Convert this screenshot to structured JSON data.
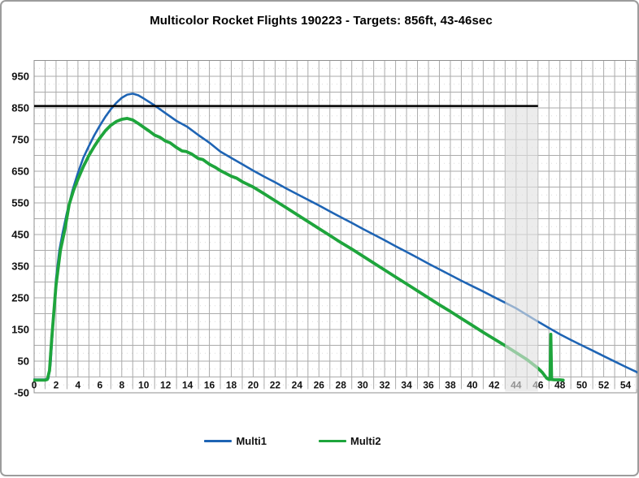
{
  "chart_data": {
    "type": "line",
    "title": "Multicolor Rocket Flights 190223 - Targets: 856ft, 43-46sec",
    "xlabel": "",
    "ylabel": "",
    "x_unit": "seconds",
    "y_unit": "feet",
    "xlim": [
      0,
      55
    ],
    "ylim": [
      -50,
      1000
    ],
    "x_tick_labels": [
      0,
      2,
      4,
      6,
      8,
      10,
      12,
      14,
      16,
      18,
      20,
      22,
      24,
      26,
      28,
      30,
      32,
      34,
      36,
      38,
      40,
      42,
      44,
      46,
      48,
      50,
      52,
      54
    ],
    "y_tick_labels": [
      -50,
      50,
      150,
      250,
      350,
      450,
      550,
      650,
      750,
      850,
      950
    ],
    "x_gridline_interval": 1,
    "y_gridline_interval": 50,
    "grid": true,
    "legend_position": "bottom",
    "target_altitude_ft": 856,
    "target_time_band_sec": [
      43,
      46
    ],
    "target_line": {
      "value": 856,
      "x_start": 0,
      "x_end": 46,
      "color": "#000000"
    },
    "band": {
      "x_start": 43,
      "x_end": 46,
      "color": "rgba(224,224,224,0.62)"
    },
    "grid_color": "#ababab",
    "border_color": "#8f8f8f",
    "series": [
      {
        "name": "Multi1",
        "color": "#1e64b4",
        "width": 2.6,
        "points": [
          [
            0,
            -8
          ],
          [
            0.5,
            -8
          ],
          [
            1,
            -8
          ],
          [
            1.3,
            -5
          ],
          [
            1.5,
            40
          ],
          [
            1.7,
            150
          ],
          [
            2,
            310
          ],
          [
            2.3,
            400
          ],
          [
            2.6,
            455
          ],
          [
            3,
            520
          ],
          [
            3.5,
            590
          ],
          [
            4,
            645
          ],
          [
            4.5,
            693
          ],
          [
            5,
            730
          ],
          [
            5.5,
            764
          ],
          [
            6,
            794
          ],
          [
            6.5,
            822
          ],
          [
            7,
            846
          ],
          [
            7.5,
            866
          ],
          [
            8,
            882
          ],
          [
            8.5,
            892
          ],
          [
            9,
            895
          ],
          [
            9.5,
            890
          ],
          [
            10,
            880
          ],
          [
            10.5,
            869
          ],
          [
            11,
            858
          ],
          [
            12,
            833
          ],
          [
            13,
            809
          ],
          [
            14,
            790
          ],
          [
            15,
            764
          ],
          [
            16,
            740
          ],
          [
            17,
            712
          ],
          [
            18,
            692
          ],
          [
            19,
            672
          ],
          [
            20,
            652
          ],
          [
            21,
            633
          ],
          [
            22,
            615
          ],
          [
            23,
            596
          ],
          [
            24,
            578
          ],
          [
            25,
            560
          ],
          [
            26,
            542
          ],
          [
            27,
            523
          ],
          [
            28,
            505
          ],
          [
            29,
            487
          ],
          [
            30,
            468
          ],
          [
            31,
            450
          ],
          [
            32,
            432
          ],
          [
            33,
            413
          ],
          [
            34,
            395
          ],
          [
            35,
            377
          ],
          [
            36,
            358
          ],
          [
            37,
            340
          ],
          [
            38,
            322
          ],
          [
            39,
            304
          ],
          [
            40,
            287
          ],
          [
            41,
            270
          ],
          [
            42,
            252
          ],
          [
            43,
            235
          ],
          [
            44,
            217
          ],
          [
            45,
            196
          ],
          [
            46,
            175
          ],
          [
            47,
            155
          ],
          [
            48,
            135
          ],
          [
            49,
            117
          ],
          [
            50,
            100
          ],
          [
            51,
            83
          ],
          [
            52,
            66
          ],
          [
            53,
            49
          ],
          [
            54,
            32
          ],
          [
            55,
            16
          ],
          [
            55.3,
            10
          ]
        ]
      },
      {
        "name": "Multi2",
        "color": "#1ea53c",
        "width": 3.8,
        "points": [
          [
            0,
            -10
          ],
          [
            0.5,
            -10
          ],
          [
            1,
            -10
          ],
          [
            1.2,
            -8
          ],
          [
            1.4,
            20
          ],
          [
            1.6,
            120
          ],
          [
            2,
            290
          ],
          [
            2.4,
            400
          ],
          [
            2.8,
            465
          ],
          [
            3.2,
            545
          ],
          [
            3.6,
            590
          ],
          [
            4,
            625
          ],
          [
            4.5,
            665
          ],
          [
            5,
            700
          ],
          [
            5.5,
            729
          ],
          [
            6,
            755
          ],
          [
            6.5,
            778
          ],
          [
            7,
            795
          ],
          [
            7.5,
            807
          ],
          [
            8,
            814
          ],
          [
            8.5,
            817
          ],
          [
            9,
            812
          ],
          [
            9.5,
            801
          ],
          [
            10,
            789
          ],
          [
            10.5,
            777
          ],
          [
            11,
            764
          ],
          [
            11.5,
            757
          ],
          [
            12,
            745
          ],
          [
            12.4,
            740
          ],
          [
            13,
            725
          ],
          [
            13.5,
            714
          ],
          [
            13.9,
            712
          ],
          [
            14.4,
            704
          ],
          [
            15,
            690
          ],
          [
            15.4,
            687
          ],
          [
            16,
            672
          ],
          [
            16.5,
            663
          ],
          [
            17,
            652
          ],
          [
            17.5,
            643
          ],
          [
            18,
            634
          ],
          [
            18.5,
            628
          ],
          [
            19,
            617
          ],
          [
            20,
            600
          ],
          [
            21,
            579
          ],
          [
            22,
            557
          ],
          [
            23,
            535
          ],
          [
            24,
            513
          ],
          [
            25,
            491
          ],
          [
            26,
            469
          ],
          [
            27,
            447
          ],
          [
            28,
            425
          ],
          [
            29,
            404
          ],
          [
            30,
            382
          ],
          [
            31,
            360
          ],
          [
            32,
            338
          ],
          [
            33,
            316
          ],
          [
            34,
            294
          ],
          [
            35,
            272
          ],
          [
            36,
            250
          ],
          [
            37,
            228
          ],
          [
            38,
            207
          ],
          [
            39,
            185
          ],
          [
            40,
            163
          ],
          [
            41,
            141
          ],
          [
            42,
            120
          ],
          [
            43,
            99
          ],
          [
            44,
            77
          ],
          [
            45,
            55
          ],
          [
            46,
            28
          ],
          [
            46.4,
            14
          ],
          [
            46.8,
            -4
          ],
          [
            47,
            -8
          ],
          [
            47.1,
            -8
          ],
          [
            47.17,
            135
          ],
          [
            47.24,
            -8
          ],
          [
            47.5,
            -9
          ],
          [
            48,
            -9
          ],
          [
            48.3,
            -10
          ]
        ]
      }
    ]
  },
  "legend": {
    "items": [
      {
        "label": "Multi1",
        "color": "#1e64b4"
      },
      {
        "label": "Multi2",
        "color": "#1ea53c"
      }
    ]
  }
}
